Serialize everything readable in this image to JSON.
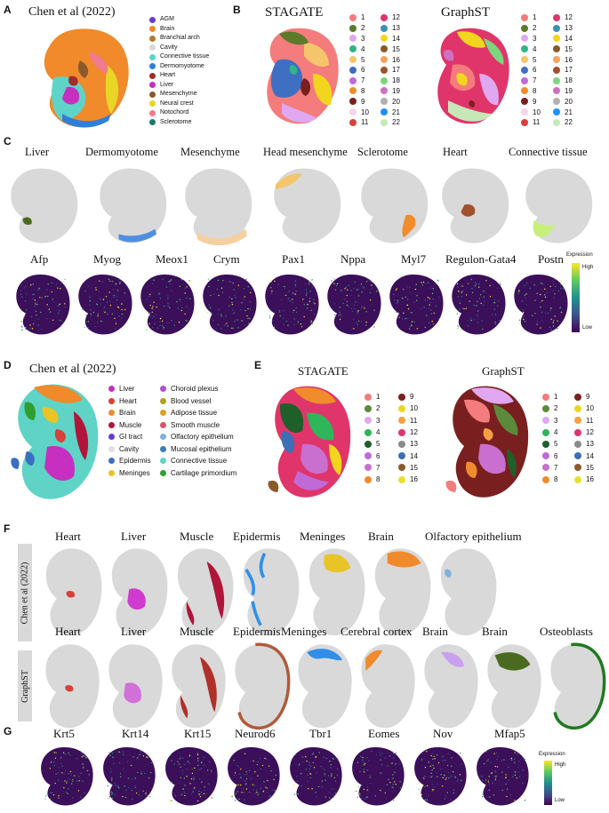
{
  "panels": {
    "A": {
      "letter": "A",
      "title": "Chen et al (2022)",
      "legend": [
        {
          "label": "AGM",
          "color": "#6a3bd1"
        },
        {
          "label": "Brain",
          "color": "#f08a2b"
        },
        {
          "label": "Branchial arch",
          "color": "#b47a2f"
        },
        {
          "label": "Cavity",
          "color": "#d8d8d8"
        },
        {
          "label": "Connective tissue",
          "color": "#5fd3c6"
        },
        {
          "label": "Dermomyotome",
          "color": "#2f7fd8"
        },
        {
          "label": "Heart",
          "color": "#a52a2a"
        },
        {
          "label": "Liver",
          "color": "#c62fc0"
        },
        {
          "label": "Mesenchyme",
          "color": "#8b5a2b"
        },
        {
          "label": "Neural crest",
          "color": "#e8d526"
        },
        {
          "label": "Notochord",
          "color": "#f07b8f"
        },
        {
          "label": "Sclerotome",
          "color": "#1c7a6a"
        }
      ]
    },
    "B": {
      "letter": "B",
      "titles": [
        "STAGATE",
        "GraphST"
      ],
      "cluster_labels": [
        "1",
        "2",
        "3",
        "4",
        "5",
        "6",
        "7",
        "8",
        "9",
        "10",
        "11",
        "12",
        "13",
        "14",
        "15",
        "16",
        "17",
        "18",
        "19",
        "20",
        "21",
        "22"
      ],
      "cluster_colors": [
        "#f47c7c",
        "#5b7a2a",
        "#e0a8f0",
        "#2fb58a",
        "#f5c56b",
        "#3f6fc2",
        "#c06ad8",
        "#f08c2c",
        "#7a1f1f",
        "#f7d4e8",
        "#d8403a",
        "#e0356a",
        "#3d8fb4",
        "#f2d61d",
        "#8b5a2b",
        "#f4a460",
        "#a0522d",
        "#7cd67c",
        "#d070c0",
        "#b0b0b0",
        "#1e90ff",
        "#c6e8b8"
      ]
    },
    "C": {
      "letter": "C",
      "row1": [
        {
          "label": "Liver",
          "color": "#4a6b1f"
        },
        {
          "label": "Dermomyotome",
          "color": "#4f8fe0"
        },
        {
          "label": "Mesenchyme",
          "color": "#f5cfa0"
        },
        {
          "label": "Head mesenchyme",
          "color": "#f5c56b"
        },
        {
          "label": "Sclerotome",
          "color": "#f08c2c"
        },
        {
          "label": "Heart",
          "color": "#a0522d"
        },
        {
          "label": "Connective tissue",
          "color": "#c6f07a"
        }
      ],
      "row2": [
        "Afp",
        "Myog",
        "Meox1",
        "Crym",
        "Pax1",
        "Nppa",
        "Myl7",
        "Regulon-Gata4",
        "Postn"
      ],
      "colorbar": {
        "title": "Expression",
        "high": "High",
        "low": "Low"
      }
    },
    "D": {
      "letter": "D",
      "title": "Chen et al (2022)",
      "legend_col1": [
        {
          "label": "Liver",
          "color": "#c62fc0"
        },
        {
          "label": "Heart",
          "color": "#d8403a"
        },
        {
          "label": "Brain",
          "color": "#f08a2b"
        },
        {
          "label": "Muscle",
          "color": "#b0163a"
        },
        {
          "label": "GI tract",
          "color": "#6a3bd1"
        },
        {
          "label": "Cavity",
          "color": "#e0e0e0"
        },
        {
          "label": "Epidermis",
          "color": "#3b6fc2"
        },
        {
          "label": "Meninges",
          "color": "#e8c426"
        }
      ],
      "legend_col2": [
        {
          "label": "Choroid plexus",
          "color": "#b04fd8"
        },
        {
          "label": "Blood vessel",
          "color": "#b0a020"
        },
        {
          "label": "Adipose tissue",
          "color": "#e0a020"
        },
        {
          "label": "Smooth muscle",
          "color": "#e0506a"
        },
        {
          "label": "Olfactory epithelium",
          "color": "#7fb0e0"
        },
        {
          "label": "Mucosal epithelium",
          "color": "#3a7fb8"
        },
        {
          "label": "Connective tissue",
          "color": "#5fd3c6"
        },
        {
          "label": "Cartilage primordium",
          "color": "#2fa02f"
        }
      ]
    },
    "E": {
      "letter": "E",
      "titles": [
        "STAGATE",
        "GraphST"
      ],
      "cluster_labels": [
        "1",
        "2",
        "3",
        "4",
        "5",
        "6",
        "7",
        "8",
        "9",
        "10",
        "11",
        "12",
        "13",
        "14",
        "15",
        "16"
      ],
      "cluster_colors": [
        "#f47c7c",
        "#5b8a3a",
        "#e0a8f0",
        "#2fb55a",
        "#1f5f2a",
        "#c06ad8",
        "#c86fd0",
        "#f08c2c",
        "#7a1f1f",
        "#f2d61d",
        "#f5a040",
        "#e0356a",
        "#8a8a8a",
        "#3d6fb4",
        "#8b5a2b",
        "#e8e030"
      ]
    },
    "F": {
      "letter": "F",
      "row1_tab": "Chen et al (2022)",
      "row2_tab": "GraphST",
      "row1": [
        {
          "label": "Heart",
          "color": "#d8403a"
        },
        {
          "label": "Liver",
          "color": "#d03ad0"
        },
        {
          "label": "Muscle",
          "color": "#b0163a"
        },
        {
          "label": "Epidermis",
          "color": "#2f8fe8"
        },
        {
          "label": "Meninges",
          "color": "#e8c426"
        },
        {
          "label": "Brain",
          "color": "#f08a2b"
        },
        {
          "label": "Olfactory epithelium",
          "color": "#7fb0e0"
        }
      ],
      "row2": [
        {
          "label": "Heart",
          "color": "#d8403a"
        },
        {
          "label": "Liver",
          "color": "#d070d8"
        },
        {
          "label": "Muscle",
          "color": "#b0302a"
        },
        {
          "label": "Epidermis",
          "color": "#b05a3a"
        },
        {
          "label": "Meninges",
          "color": "#2f8fe8"
        },
        {
          "label": "Cerebral cortex",
          "color": "#f08a2b"
        },
        {
          "label": "Brain",
          "color": "#c8a0f0"
        },
        {
          "label": "Brain",
          "color": "#4a6b1f"
        },
        {
          "label": "Osteoblasts",
          "color": "#1f7a1f"
        }
      ]
    },
    "G": {
      "letter": "G",
      "genes": [
        "Krt5",
        "Krt14",
        "Krt15",
        "Neurod6",
        "Tbr1",
        "Eomes",
        "Nov",
        "Mfap5"
      ],
      "colorbar": {
        "title": "Expression",
        "high": "High",
        "low": "Low"
      }
    }
  }
}
